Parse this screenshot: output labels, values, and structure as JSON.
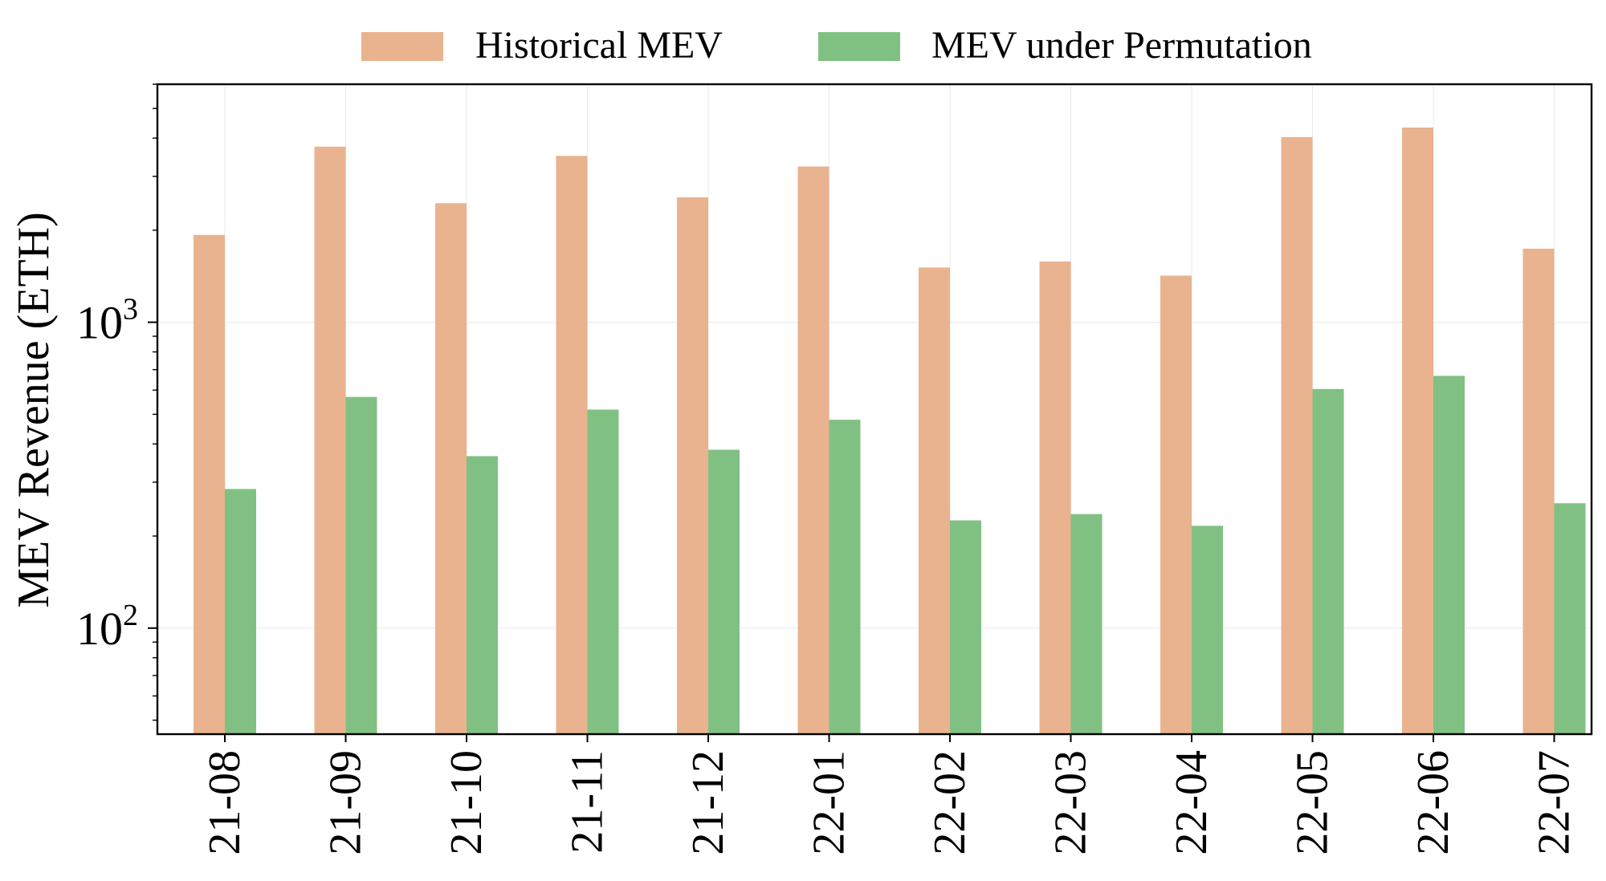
{
  "chart_data": {
    "type": "bar",
    "title": "",
    "xlabel": "",
    "ylabel": "MEV Revenue (ETH)",
    "yscale": "log",
    "ylim": [
      45,
      6000
    ],
    "y_ticks": [
      {
        "value": 100,
        "base": "10",
        "exp": "2"
      },
      {
        "value": 1000,
        "base": "10",
        "exp": "3"
      }
    ],
    "grid": true,
    "legend_position": "top",
    "categories": [
      "21-08",
      "21-09",
      "21-10",
      "21-11",
      "21-12",
      "22-01",
      "22-02",
      "22-03",
      "22-04",
      "22-05",
      "22-06",
      "22-07"
    ],
    "series": [
      {
        "name": "Historical MEV",
        "color": "#e8b38e",
        "values": [
          1930,
          3750,
          2450,
          3500,
          2560,
          3230,
          1510,
          1580,
          1420,
          4030,
          4330,
          1740
        ]
      },
      {
        "name": "MEV under Permutation",
        "color": "#80c183",
        "values": [
          285,
          570,
          365,
          518,
          383,
          480,
          225,
          236,
          216,
          605,
          668,
          256
        ]
      }
    ]
  }
}
